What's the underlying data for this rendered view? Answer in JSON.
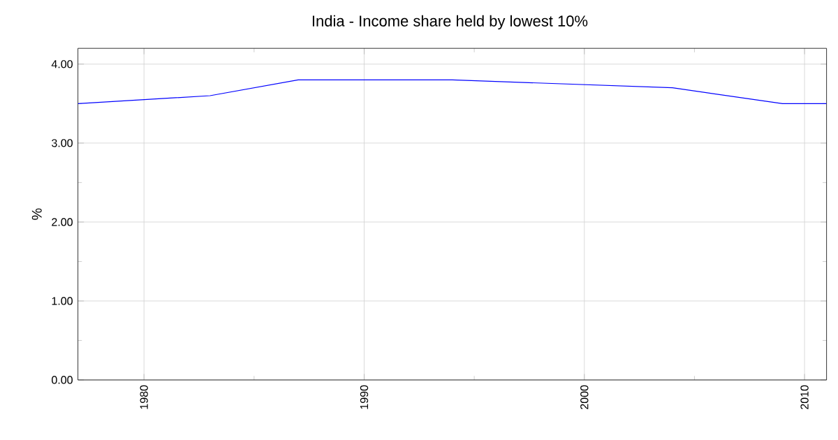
{
  "chart_data": {
    "type": "line",
    "title": "India - Income share held by lowest 10%",
    "ylabel": "%",
    "x": [
      1977,
      1983,
      1987,
      1994,
      2004,
      2009,
      2011
    ],
    "values": [
      3.5,
      3.6,
      3.8,
      3.8,
      3.7,
      3.5,
      3.5
    ],
    "color": "#0000ff",
    "xlim": [
      1977,
      2011
    ],
    "xticks": [
      1980,
      1990,
      2000,
      2010
    ],
    "ylim": [
      0,
      4.2
    ],
    "yticks": [
      {
        "value": 0,
        "label": "0.00"
      },
      {
        "value": 1,
        "label": "1.00"
      },
      {
        "value": 2,
        "label": "2.00"
      },
      {
        "value": 3,
        "label": "3.00"
      },
      {
        "value": 4,
        "label": "4.00"
      }
    ],
    "grid": true,
    "marker": "none",
    "line_style": "solid"
  }
}
